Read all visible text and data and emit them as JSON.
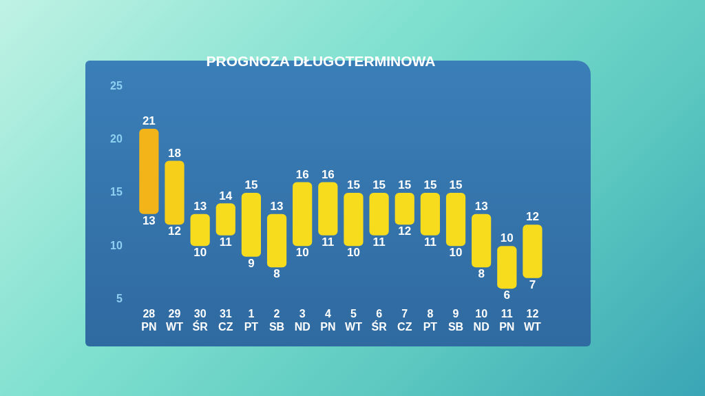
{
  "chart_data": {
    "type": "bar",
    "title": "PROGNOZA DŁUGOTERMINOWA",
    "categories": [
      "28\nPN",
      "29\nWT",
      "30\nŚR",
      "31\nCZ",
      "1\nPT",
      "2\nSB",
      "3\nND",
      "4\nPN",
      "5\nWT",
      "6\nŚR",
      "7\nCZ",
      "8\nPT",
      "9\nSB",
      "10\nND",
      "11\nPN",
      "12\nWT"
    ],
    "base": [
      13,
      12,
      10,
      11,
      9,
      8,
      10,
      11,
      10,
      11,
      12,
      11,
      10,
      8,
      6,
      7
    ],
    "values": [
      8,
      6,
      3,
      3,
      6,
      5,
      6,
      5,
      5,
      4,
      3,
      4,
      5,
      5,
      4,
      5
    ],
    "colors": [
      "#f2b418",
      "#f5cf1a",
      "#f7dc1e",
      "#f7dc1e",
      "#f7dc1e",
      "#f7dc1e",
      "#f7dc1e",
      "#f7dc1e",
      "#f7dc1e",
      "#f7dc1e",
      "#f7dc1e",
      "#f7dc1e",
      "#f7dc1e",
      "#f7dc1e",
      "#f7dc1e",
      "#f7dc1e"
    ],
    "ylim": [
      5,
      25
    ],
    "yticks": [
      5,
      10,
      15,
      20,
      25
    ],
    "grid": false,
    "legend": false,
    "annotations": [
      {
        "text": "21",
        "x": "28\nPN",
        "y": 21
      },
      {
        "text": "13",
        "x": "28\nPN",
        "y": 13
      },
      {
        "text": "18",
        "x": "29\nWT",
        "y": 18
      },
      {
        "text": "12",
        "x": "29\nWT",
        "y": 12
      },
      {
        "text": "13",
        "x": "30\nŚR",
        "y": 13
      },
      {
        "text": "10",
        "x": "30\nŚR",
        "y": 10
      },
      {
        "text": "14",
        "x": "31\nCZ",
        "y": 14
      },
      {
        "text": "11",
        "x": "31\nCZ",
        "y": 11
      },
      {
        "text": "15",
        "x": "1\nPT",
        "y": 15
      },
      {
        "text": "9",
        "x": "1\nPT",
        "y": 9
      },
      {
        "text": "13",
        "x": "2\nSB",
        "y": 13
      },
      {
        "text": "8",
        "x": "2\nSB",
        "y": 8
      },
      {
        "text": "16",
        "x": "3\nND",
        "y": 16
      },
      {
        "text": "10",
        "x": "3\nND",
        "y": 10
      },
      {
        "text": "16",
        "x": "4\nPN",
        "y": 16
      },
      {
        "text": "11",
        "x": "4\nPN",
        "y": 11
      },
      {
        "text": "15",
        "x": "5\nWT",
        "y": 15
      },
      {
        "text": "10",
        "x": "5\nWT",
        "y": 10
      },
      {
        "text": "15",
        "x": "6\nŚR",
        "y": 15
      },
      {
        "text": "11",
        "x": "6\nŚR",
        "y": 11
      },
      {
        "text": "15",
        "x": "7\nCZ",
        "y": 15
      },
      {
        "text": "12",
        "x": "7\nCZ",
        "y": 12
      },
      {
        "text": "15",
        "x": "8\nPT",
        "y": 15
      },
      {
        "text": "11",
        "x": "8\nPT",
        "y": 11
      },
      {
        "text": "15",
        "x": "9\nSB",
        "y": 15
      },
      {
        "text": "10",
        "x": "9\nSB",
        "y": 10
      },
      {
        "text": "13",
        "x": "10\nND",
        "y": 13
      },
      {
        "text": "8",
        "x": "10\nND",
        "y": 8
      },
      {
        "text": "10",
        "x": "11\nPN",
        "y": 10
      },
      {
        "text": "6",
        "x": "11\nPN",
        "y": 6
      },
      {
        "text": "12",
        "x": "12\nWT",
        "y": 12
      },
      {
        "text": "7",
        "x": "12\nWT",
        "y": 7
      }
    ]
  }
}
